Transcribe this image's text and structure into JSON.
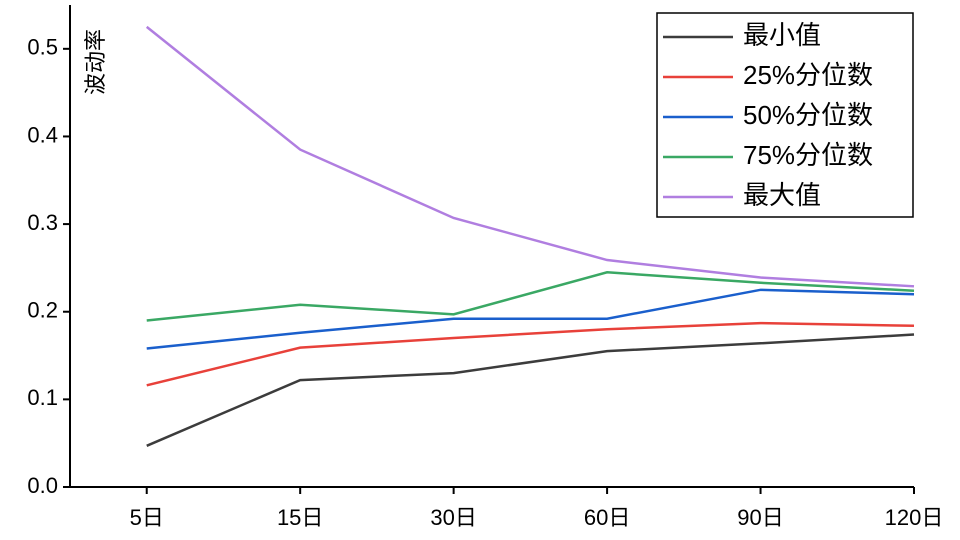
{
  "chart_data": {
    "type": "line",
    "ylabel": "波动率",
    "categories": [
      "5日",
      "15日",
      "30日",
      "60日",
      "90日",
      "120日"
    ],
    "series": [
      {
        "name": "最小值",
        "color": "#3c3c3c",
        "values": [
          0.047,
          0.122,
          0.13,
          0.155,
          0.164,
          0.174
        ]
      },
      {
        "name": "25%分位数",
        "color": "#e8413a",
        "values": [
          0.116,
          0.159,
          0.17,
          0.18,
          0.187,
          0.184
        ]
      },
      {
        "name": "50%分位数",
        "color": "#1a5fcc",
        "values": [
          0.158,
          0.176,
          0.192,
          0.192,
          0.225,
          0.22
        ]
      },
      {
        "name": "75%分位数",
        "color": "#3aa864",
        "values": [
          0.19,
          0.208,
          0.197,
          0.245,
          0.233,
          0.224
        ]
      },
      {
        "name": "最大值",
        "color": "#b07ee0",
        "values": [
          0.525,
          0.385,
          0.307,
          0.259,
          0.239,
          0.229
        ]
      }
    ],
    "ylim": [
      0,
      0.55
    ],
    "yticks": [
      {
        "value": 0,
        "label": "0.0"
      },
      0.1,
      0.2,
      0.3,
      0.4,
      0.5
    ],
    "legend": "upper right"
  }
}
